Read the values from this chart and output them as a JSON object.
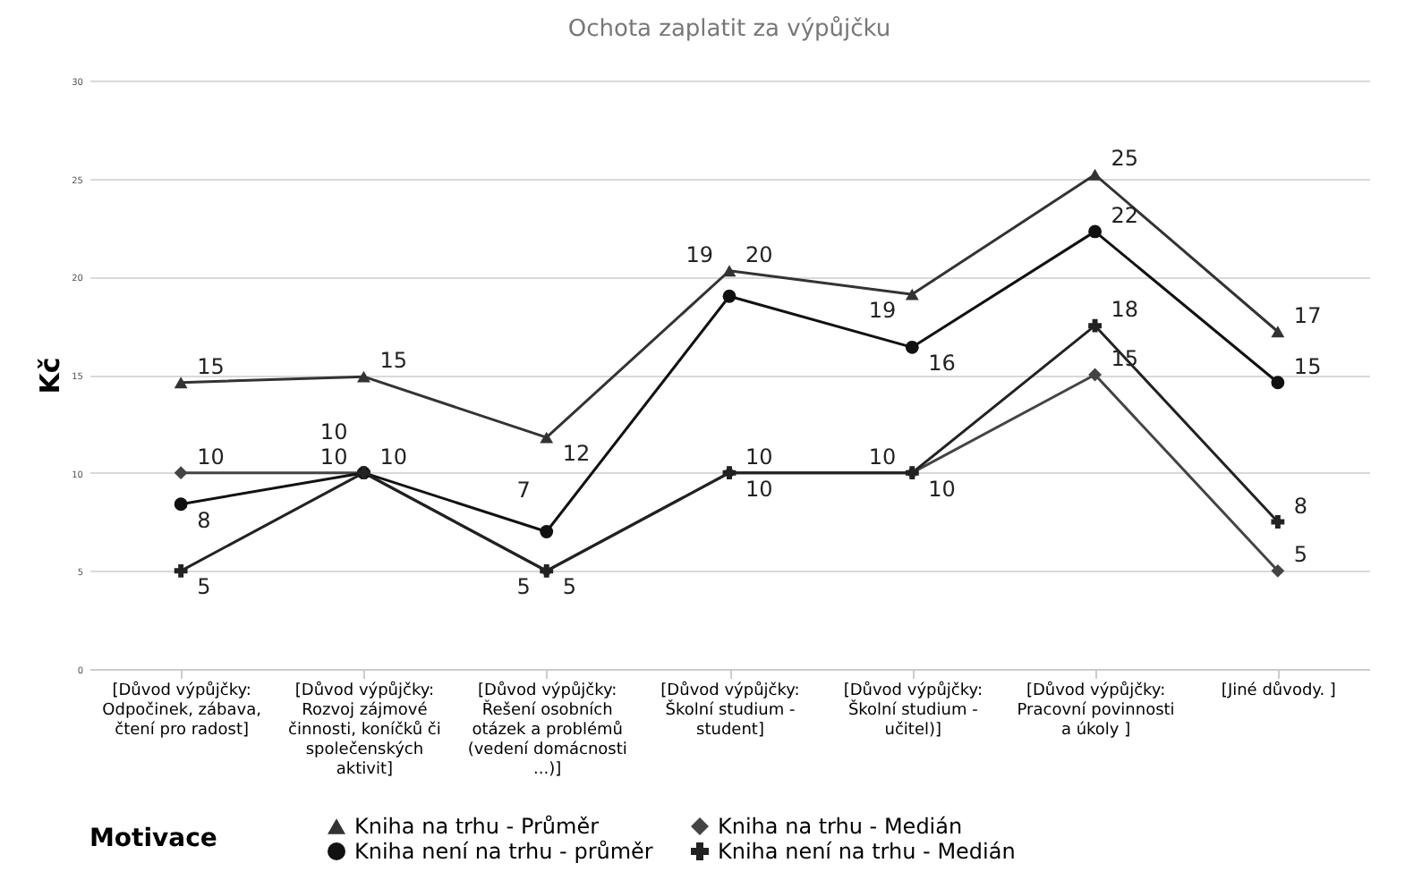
{
  "chart_data": {
    "type": "line",
    "title": "Ochota zaplatit za výpůjčku",
    "ylabel": "Kč",
    "legend_title": "Motivace",
    "categories": [
      "[Důvod výpůjčky: Odpočinek, zábava, čtení pro radost]",
      "[Důvod výpůjčky: Rozvoj zájmové činnosti, koníčků či společenských aktivit]",
      "[Důvod výpůjčky: Řešení osobních otázek a problémů (vedení domácnosti ...)]",
      "[Důvod výpůjčky: Školní studium - student]",
      "[Důvod výpůjčky: Školní studium - učitel)]",
      "[Důvod výpůjčky: Pracovní povinnosti a úkoly ]",
      "[Jiné důvody. ]"
    ],
    "series": [
      {
        "name": "Kniha na trhu - Průměr",
        "color": "#333333",
        "marker": "triangle",
        "values": [
          14.6,
          14.9,
          11.8,
          20.3,
          19.1,
          25.2,
          17.2
        ],
        "value_labels": [
          "15",
          "15",
          "12",
          "20",
          "19",
          "25",
          "17"
        ]
      },
      {
        "name": "Kniha na trhu - Medián",
        "color": "#444444",
        "marker": "diamond",
        "values": [
          10,
          10,
          5,
          10,
          10,
          15,
          5
        ],
        "value_labels": [
          "10",
          "10",
          "5",
          "10",
          "10",
          "15",
          "5"
        ]
      },
      {
        "name": "Kniha není na trhu - průměr",
        "color": "#111111",
        "marker": "circle",
        "values": [
          8.4,
          10,
          7,
          19,
          16.4,
          22.3,
          14.6
        ],
        "value_labels": [
          "8",
          "10",
          "7",
          "19",
          "16",
          "22",
          "15"
        ]
      },
      {
        "name": "Kniha není na trhu - Medián",
        "color": "#222222",
        "marker": "cross",
        "values": [
          5,
          10,
          5,
          10,
          10,
          17.5,
          7.5
        ],
        "value_labels": [
          "5",
          "10",
          "5",
          "10",
          "10",
          "18",
          "8"
        ]
      }
    ],
    "ylim": [
      0,
      30
    ],
    "yticks": [
      0,
      5,
      10,
      15,
      20,
      25,
      30
    ],
    "grid": "y",
    "legend": "bottom",
    "line_style": "solid"
  }
}
